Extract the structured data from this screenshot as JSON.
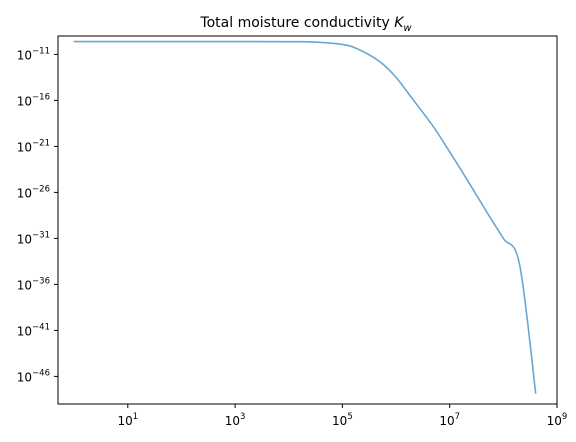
{
  "chart_data": {
    "type": "line",
    "title": "Total moisture conductivity ",
    "title_symbol": "K",
    "title_subscript": "w",
    "xlabel": "",
    "ylabel": "",
    "xscale": "log",
    "yscale": "log",
    "xlim": [
      0.5,
      1000000000
    ],
    "ylim": [
      1e-49,
      1e-09
    ],
    "grid": false,
    "legend": "none",
    "series": [
      {
        "color": "#6aa7d3",
        "x": [
          1,
          10,
          100,
          1000,
          10000,
          30000,
          100000,
          200000,
          500000,
          1000000,
          2000000,
          5000000,
          10000000,
          20000000,
          50000000,
          100000000,
          200000000,
          400000000
        ],
        "y": [
          2.5e-10,
          2.5e-10,
          2.5e-10,
          2.5e-10,
          2.4e-10,
          2.2e-10,
          1.2e-10,
          3.5e-11,
          1.6e-12,
          3.2e-14,
          1.6e-16,
          1.3e-19,
          2.5e-22,
          4e-25,
          6.3e-29,
          1e-31,
          1.6e-34,
          1.6e-48
        ]
      }
    ],
    "x_ticks": [
      {
        "value": 10,
        "base": "10",
        "exp": "1"
      },
      {
        "value": 1000,
        "base": "10",
        "exp": "3"
      },
      {
        "value": 100000,
        "base": "10",
        "exp": "5"
      },
      {
        "value": 10000000,
        "base": "10",
        "exp": "7"
      },
      {
        "value": 1000000000,
        "base": "10",
        "exp": "9"
      }
    ],
    "y_ticks": [
      {
        "value": 1e-11,
        "base": "10",
        "exp": "−11"
      },
      {
        "value": 1e-16,
        "base": "10",
        "exp": "−16"
      },
      {
        "value": 1e-21,
        "base": "10",
        "exp": "−21"
      },
      {
        "value": 1e-26,
        "base": "10",
        "exp": "−26"
      },
      {
        "value": 1e-31,
        "base": "10",
        "exp": "−31"
      },
      {
        "value": 1e-36,
        "base": "10",
        "exp": "−36"
      },
      {
        "value": 1e-41,
        "base": "10",
        "exp": "−41"
      },
      {
        "value": 1e-46,
        "base": "10",
        "exp": "−46"
      }
    ]
  }
}
